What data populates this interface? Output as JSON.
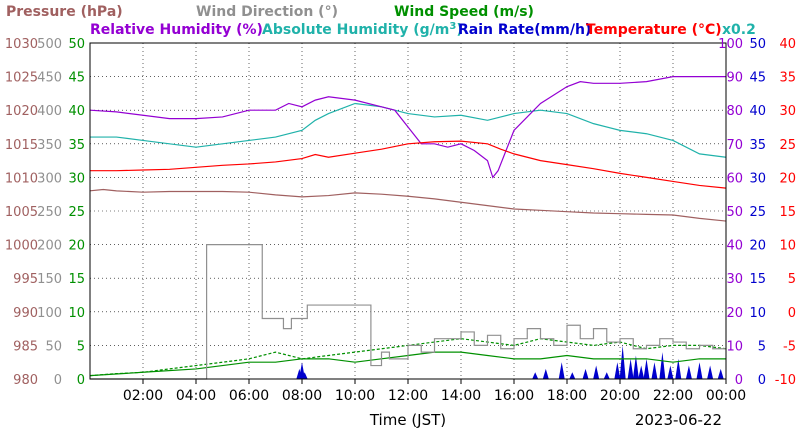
{
  "chart_data": {
    "type": "line",
    "header": {
      "line1": [
        {
          "key": "pressure",
          "text": "Pressure (hPa)",
          "color": "#a06060"
        },
        {
          "key": "wind_dir",
          "text": "Wind Direction (°)",
          "color": "#909090"
        },
        {
          "key": "wind_speed",
          "text": "Wind Speed (m/s)",
          "color": "#009000"
        }
      ],
      "line2": [
        {
          "key": "rh",
          "text": "Relative Humidity (%)",
          "color": "#9400d3"
        },
        {
          "key": "ah",
          "text": "Absolute Humidity (g/m",
          "sup": "3",
          "suffix": ")",
          "color": "#20b2aa"
        },
        {
          "key": "rain",
          "text": "Rain Rate(mm/h)",
          "color": "#0000cd"
        },
        {
          "key": "temp",
          "text": "Temperature (°C)",
          "color": "#ff0000"
        },
        {
          "key": "scale_note",
          "text": "x0.2",
          "color": "#20b2aa"
        }
      ]
    },
    "xlabel": "Time (JST)",
    "date": "2023-06-22",
    "x_range_hours": [
      0,
      24
    ],
    "x_ticks": [
      {
        "h": 2,
        "label": "02:00"
      },
      {
        "h": 4,
        "label": "04:00"
      },
      {
        "h": 6,
        "label": "06:00"
      },
      {
        "h": 8,
        "label": "08:00"
      },
      {
        "h": 10,
        "label": "10:00"
      },
      {
        "h": 12,
        "label": "12:00"
      },
      {
        "h": 14,
        "label": "14:00"
      },
      {
        "h": 16,
        "label": "16:00"
      },
      {
        "h": 18,
        "label": "18:00"
      },
      {
        "h": 20,
        "label": "20:00"
      },
      {
        "h": 22,
        "label": "22:00"
      },
      {
        "h": 24,
        "label": "00:00"
      }
    ],
    "left_axes": [
      {
        "key": "pressure",
        "color": "#a06060",
        "range": [
          980,
          1030
        ],
        "ticks": [
          "1030",
          "1025",
          "1020",
          "1015",
          "1010",
          "1005",
          "1000",
          "995",
          "990",
          "985",
          "980"
        ]
      },
      {
        "key": "wind_dir",
        "color": "#909090",
        "range": [
          0,
          500
        ],
        "ticks": [
          "500",
          "450",
          "400",
          "350",
          "300",
          "250",
          "200",
          "150",
          "100",
          "50",
          "0"
        ]
      },
      {
        "key": "wind_speed",
        "color": "#009000",
        "range": [
          0,
          50
        ],
        "ticks": [
          "50",
          "45",
          "40",
          "35",
          "30",
          "25",
          "20",
          "15",
          "10",
          "5",
          "0"
        ]
      }
    ],
    "right_axes": [
      {
        "key": "rh",
        "color": "#9400d3",
        "range": [
          0,
          100
        ],
        "ticks": [
          "100",
          "90",
          "80",
          "70",
          "60",
          "50",
          "40",
          "30",
          "20",
          "10",
          "0"
        ]
      },
      {
        "key": "rain",
        "color": "#0000cd",
        "range": [
          0,
          50
        ],
        "ticks": [
          "50",
          "45",
          "40",
          "35",
          "30",
          "25",
          "20",
          "15",
          "10",
          "5",
          "0"
        ]
      },
      {
        "key": "temp",
        "color": "#ff0000",
        "range": [
          -10,
          40
        ],
        "ticks": [
          "40",
          "35",
          "30",
          "25",
          "20",
          "15",
          "10",
          "5",
          "0",
          "-5",
          "-10"
        ]
      }
    ],
    "gridlines": true,
    "series": [
      {
        "key": "pressure",
        "color": "#a06060",
        "axis": "pressure",
        "x": [
          0,
          0.5,
          1,
          2,
          3,
          4,
          5,
          6,
          7,
          8,
          9,
          10,
          11,
          12,
          13,
          14,
          15,
          16,
          17,
          18,
          19,
          20,
          21,
          22,
          23,
          24
        ],
        "y": [
          1008.0,
          1008.2,
          1008.0,
          1007.8,
          1007.9,
          1007.9,
          1007.9,
          1007.8,
          1007.4,
          1007.1,
          1007.3,
          1007.7,
          1007.5,
          1007.2,
          1006.8,
          1006.3,
          1005.8,
          1005.3,
          1005.1,
          1004.9,
          1004.7,
          1004.6,
          1004.5,
          1004.4,
          1003.9,
          1003.5
        ]
      },
      {
        "key": "temp",
        "color": "#ff0000",
        "axis": "temp",
        "x": [
          0,
          1,
          2,
          3,
          4,
          5,
          6,
          7,
          8,
          8.5,
          9,
          10,
          11,
          12,
          13,
          14,
          15,
          15.5,
          16,
          17,
          18,
          19,
          20,
          21,
          22,
          23,
          24
        ],
        "y": [
          21.0,
          21.0,
          21.1,
          21.2,
          21.5,
          21.8,
          22.0,
          22.3,
          22.8,
          23.4,
          23.0,
          23.6,
          24.2,
          25.0,
          25.3,
          25.4,
          25.0,
          24.2,
          23.5,
          22.5,
          21.9,
          21.3,
          20.6,
          20.0,
          19.4,
          18.8,
          18.4
        ]
      },
      {
        "key": "rh",
        "color": "#9400d3",
        "axis": "rh",
        "x": [
          0,
          1,
          2,
          3,
          4,
          5,
          6,
          7,
          7.5,
          8,
          8.5,
          9,
          10,
          11,
          11.5,
          12,
          12.5,
          13,
          13.5,
          14,
          14.5,
          15,
          15.2,
          15.4,
          16,
          17,
          18,
          18.5,
          19,
          20,
          21,
          22,
          23,
          24
        ],
        "y": [
          80,
          79.5,
          78.5,
          77.5,
          77.5,
          78,
          80,
          80,
          82,
          81,
          83,
          84,
          83,
          81,
          80,
          75,
          70,
          70,
          69,
          70,
          68,
          65,
          60,
          62,
          74,
          82,
          87,
          88.5,
          88,
          88,
          88.5,
          90,
          90,
          90
        ]
      },
      {
        "key": "ah",
        "color": "#20b2aa",
        "axis": "pressure_scaled",
        "x": [
          0,
          1,
          2,
          3,
          4,
          5,
          6,
          7,
          8,
          8.5,
          9,
          10,
          11,
          12,
          13,
          14,
          15,
          16,
          17,
          18,
          19,
          20,
          21,
          22,
          23,
          24
        ],
        "y": [
          72,
          72,
          71,
          70,
          69,
          70,
          71,
          72,
          74,
          77,
          79,
          82,
          81,
          79,
          78,
          78.5,
          77,
          79,
          80,
          79,
          76,
          74,
          73,
          71,
          67,
          66
        ]
      },
      {
        "key": "wind_dir",
        "color": "#909090",
        "axis": "wind_dir",
        "step": true,
        "x": [
          0,
          4.2,
          4.4,
          6.2,
          6.5,
          7.0,
          7.3,
          7.6,
          8.2,
          8.4,
          8.6,
          10.4,
          10.6,
          11.0,
          11.3,
          12.0,
          12.5,
          13.0,
          13.5,
          14.0,
          14.5,
          15.0,
          15.5,
          16.0,
          16.5,
          17.0,
          17.5,
          18.0,
          18.5,
          19.0,
          19.5,
          20.0,
          20.5,
          21.0,
          21.5,
          22.0,
          22.5,
          23.0,
          23.5,
          24.0
        ],
        "y": [
          0,
          0,
          200,
          200,
          90,
          90,
          75,
          90,
          110,
          110,
          110,
          110,
          20,
          40,
          30,
          50,
          40,
          60,
          60,
          70,
          50,
          65,
          45,
          60,
          75,
          60,
          50,
          80,
          60,
          75,
          55,
          60,
          45,
          50,
          60,
          55,
          45,
          50,
          45,
          45
        ]
      },
      {
        "key": "wind_speed",
        "color": "#009000",
        "axis": "wind_speed",
        "x": [
          0,
          2,
          4,
          5,
          6,
          7,
          8,
          9,
          10,
          11,
          12,
          13,
          14,
          15,
          16,
          17,
          18,
          19,
          20,
          21,
          22,
          23,
          24
        ],
        "y": [
          0.5,
          1.0,
          1.5,
          2.0,
          2.5,
          2.5,
          3.0,
          3.0,
          2.5,
          3.0,
          3.5,
          4.0,
          4.0,
          3.5,
          3.0,
          3.0,
          3.5,
          3.0,
          3.0,
          3.0,
          2.5,
          3.0,
          3.0
        ]
      },
      {
        "key": "wind_gust",
        "color": "#009000",
        "axis": "wind_speed",
        "dashed": true,
        "x": [
          0,
          1,
          2,
          3,
          4,
          5,
          6,
          7,
          8,
          9,
          10,
          11,
          12,
          13,
          14,
          15,
          16,
          17,
          18,
          19,
          20,
          21,
          22,
          23,
          24
        ],
        "y": [
          0.5,
          0.8,
          1.0,
          1.5,
          2.0,
          2.5,
          3.0,
          4.0,
          3.0,
          3.5,
          4.0,
          4.5,
          5.0,
          5.5,
          6.0,
          5.5,
          5.0,
          6.0,
          5.5,
          5.0,
          5.5,
          4.5,
          5.0,
          5.0,
          4.5
        ]
      },
      {
        "key": "rain",
        "color": "#0000cd",
        "axis": "rain",
        "type": "bars",
        "x": [
          7.9,
          8.0,
          8.1,
          16.8,
          17.2,
          17.8,
          18.2,
          18.7,
          19.1,
          19.5,
          19.9,
          20.1,
          20.4,
          20.6,
          20.8,
          21.0,
          21.3,
          21.6,
          21.9,
          22.2,
          22.6,
          23.0,
          23.4,
          23.8
        ],
        "y": [
          1.5,
          2.5,
          1.0,
          1.0,
          1.5,
          2.5,
          1.0,
          1.5,
          2.0,
          1.0,
          2.5,
          5.0,
          3.0,
          3.5,
          2.0,
          3.0,
          2.5,
          4.0,
          2.0,
          3.0,
          2.0,
          2.5,
          2.0,
          1.5
        ]
      }
    ]
  }
}
